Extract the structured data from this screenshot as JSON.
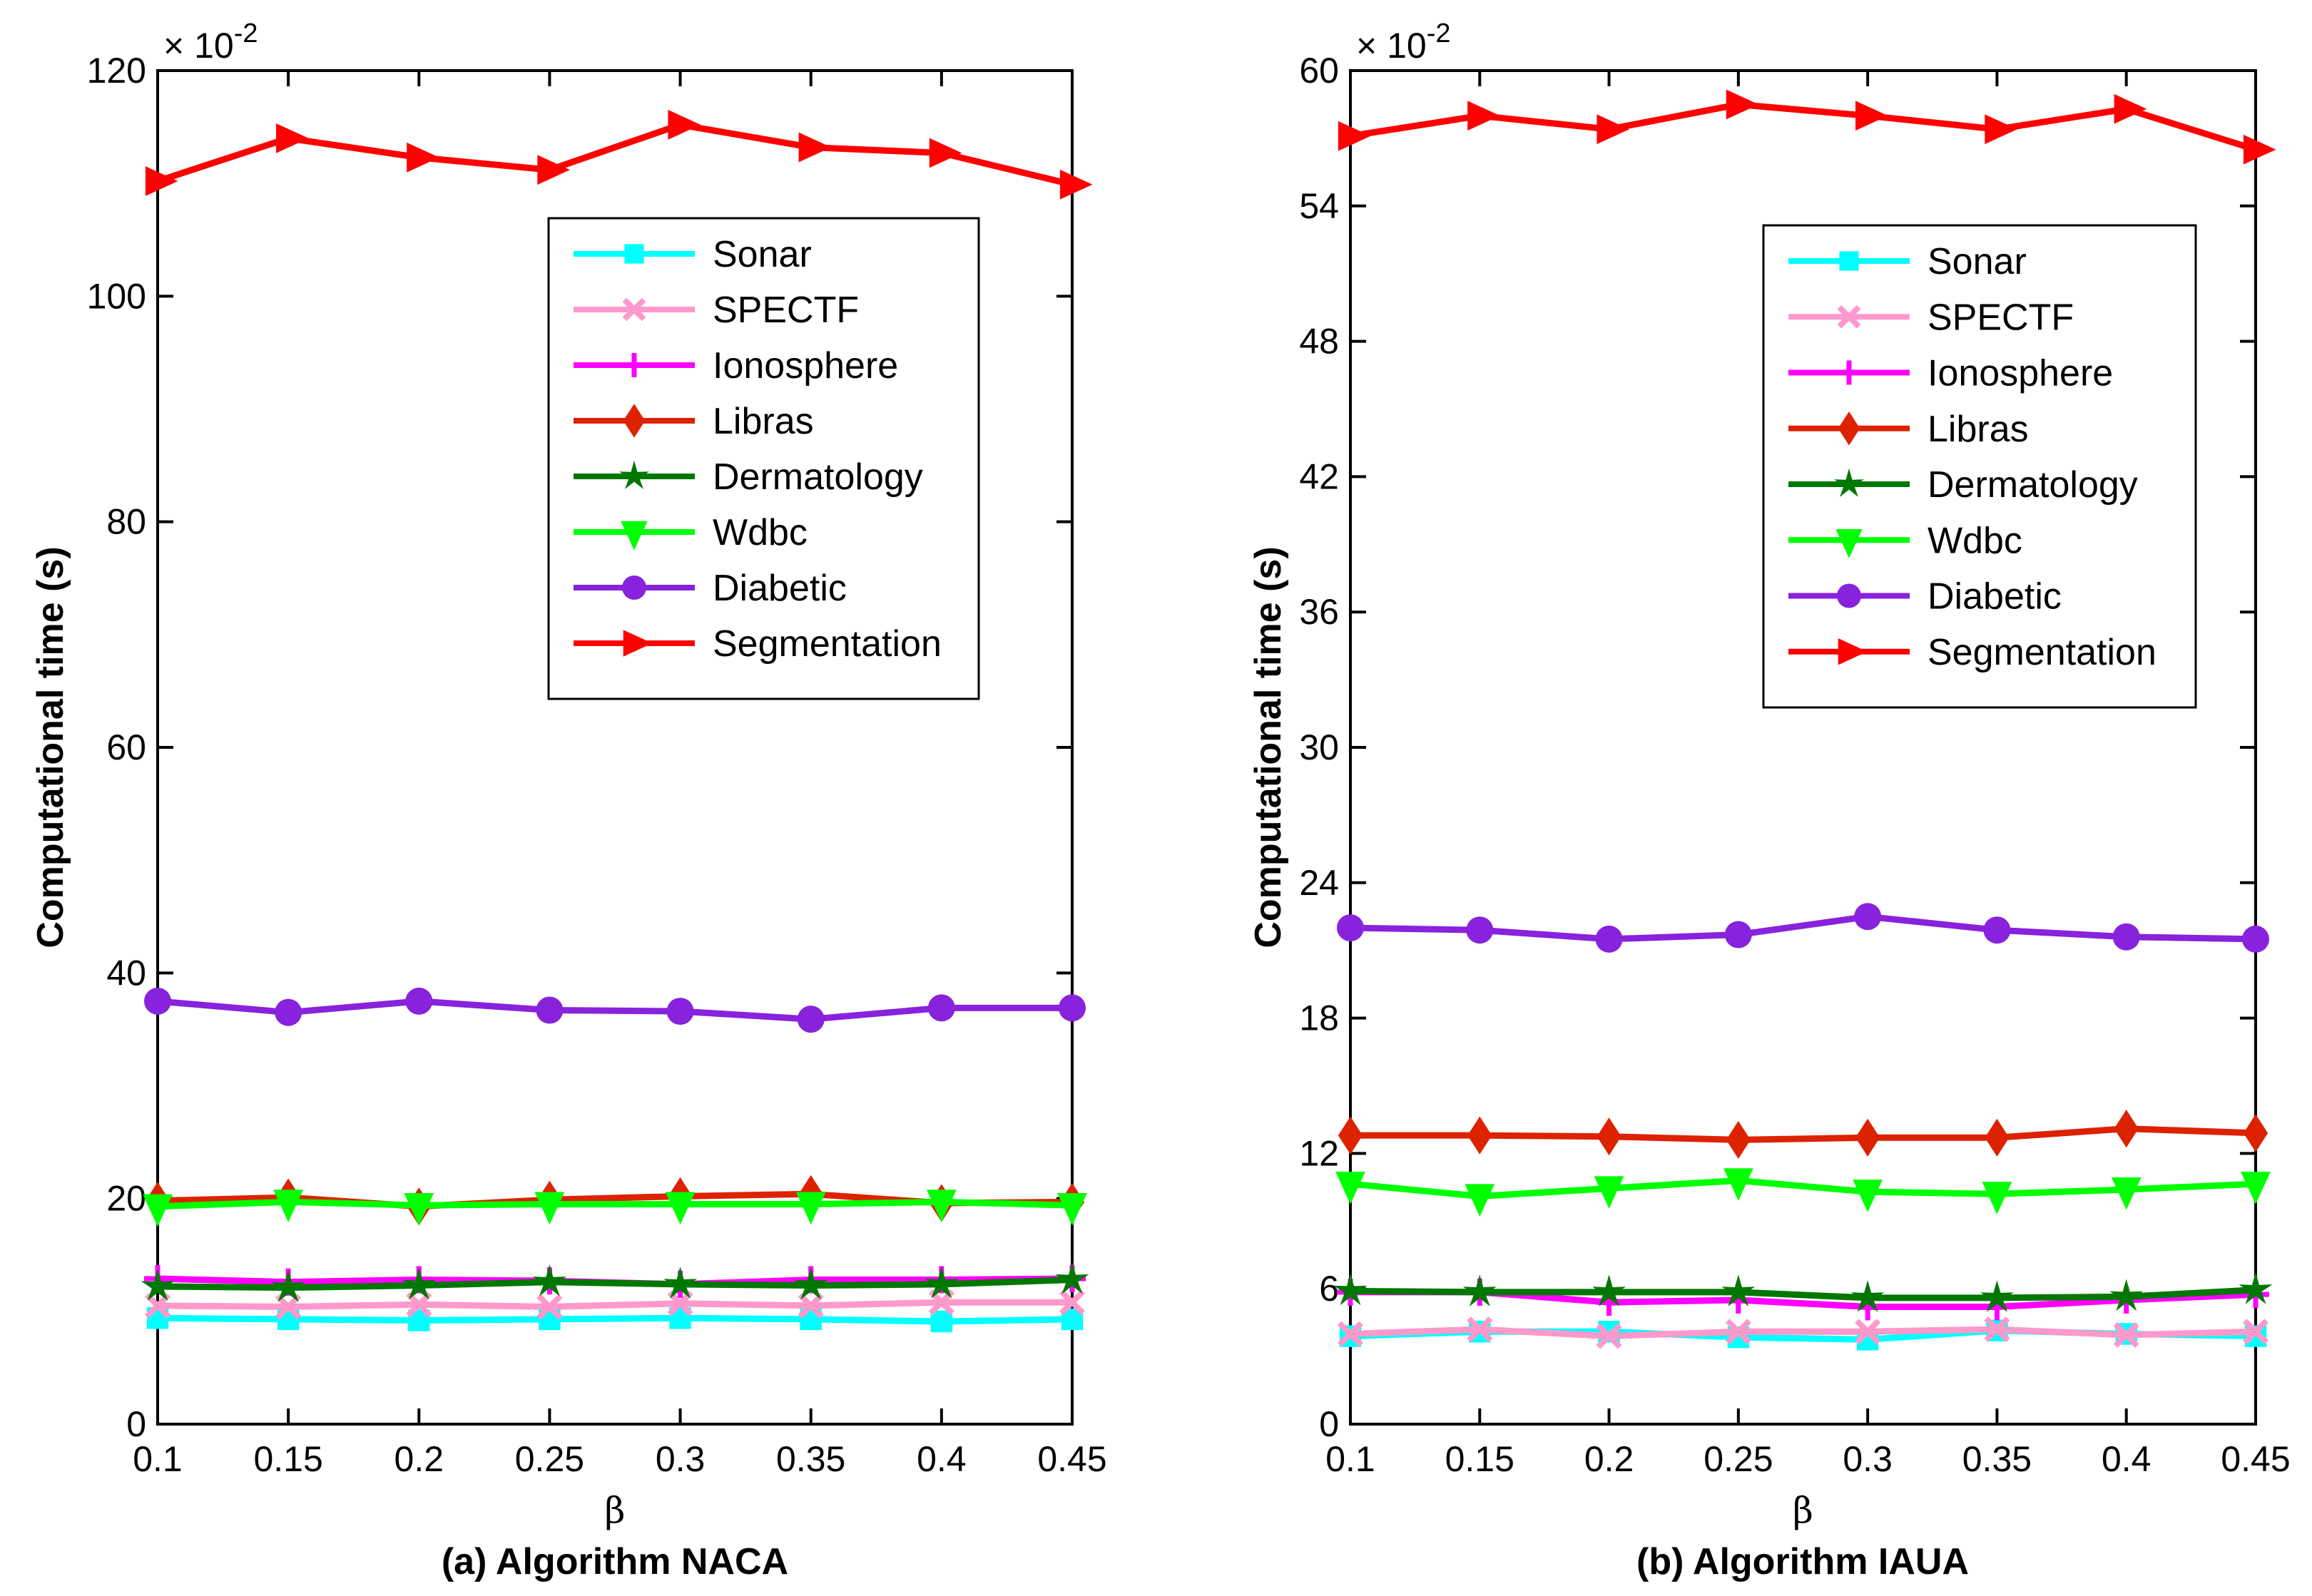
{
  "chart_data": [
    {
      "type": "line",
      "title": "(a) Algorithm NACA",
      "xlabel": "β",
      "ylabel": "Computational time (s)",
      "y_multiplier": "× 10^-2",
      "y_multiplier_base": "× 10",
      "y_multiplier_exp": "-2",
      "x": [
        0.1,
        0.15,
        0.2,
        0.25,
        0.3,
        0.35,
        0.4,
        0.45
      ],
      "xtick_labels": [
        "0.1",
        "0.15",
        "0.2",
        "0.25",
        "0.3",
        "0.35",
        "0.4",
        "0.45"
      ],
      "xlim": [
        0.1,
        0.45
      ],
      "ylim": [
        0,
        120
      ],
      "yticks": [
        0,
        20,
        40,
        60,
        80,
        100,
        120
      ],
      "legend_position": "upper-right",
      "grid": false,
      "series": [
        {
          "name": "Sonar",
          "color": "#00ffff",
          "marker": "square",
          "values": [
            9.4,
            9.3,
            9.2,
            9.3,
            9.4,
            9.3,
            9.1,
            9.3
          ]
        },
        {
          "name": "SPECTF",
          "color": "#ff99cc",
          "marker": "x",
          "values": [
            10.5,
            10.4,
            10.6,
            10.4,
            10.7,
            10.5,
            10.8,
            10.8
          ]
        },
        {
          "name": "Ionosphere",
          "color": "#ff00ff",
          "marker": "plus",
          "values": [
            12.9,
            12.6,
            12.8,
            12.7,
            12.4,
            12.8,
            12.8,
            12.9
          ]
        },
        {
          "name": "Libras",
          "color": "#dd2200",
          "marker": "diamond",
          "values": [
            19.8,
            20.1,
            19.3,
            19.9,
            20.2,
            20.4,
            19.6,
            19.7
          ]
        },
        {
          "name": "Dermatology",
          "color": "#007700",
          "marker": "star",
          "values": [
            12.2,
            12.1,
            12.3,
            12.6,
            12.4,
            12.3,
            12.4,
            12.8
          ]
        },
        {
          "name": "Wdbc",
          "color": "#00ff00",
          "marker": "triangle-down",
          "values": [
            19.3,
            19.7,
            19.4,
            19.5,
            19.5,
            19.5,
            19.7,
            19.4
          ]
        },
        {
          "name": "Diabetic",
          "color": "#8822dd",
          "marker": "circle",
          "values": [
            37.5,
            36.5,
            37.5,
            36.7,
            36.6,
            35.9,
            36.9,
            36.9
          ]
        },
        {
          "name": "Segmentation",
          "color": "#ff0000",
          "marker": "triangle-right",
          "values": [
            110.2,
            114.0,
            112.3,
            111.2,
            115.2,
            113.2,
            112.7,
            109.9
          ]
        }
      ]
    },
    {
      "type": "line",
      "title": "(b) Algorithm IAUA",
      "xlabel": "β",
      "ylabel": "Computational time (s)",
      "y_multiplier": "× 10^-2",
      "y_multiplier_base": "× 10",
      "y_multiplier_exp": "-2",
      "x": [
        0.1,
        0.15,
        0.2,
        0.25,
        0.3,
        0.35,
        0.4,
        0.45
      ],
      "xtick_labels": [
        "0.1",
        "0.15",
        "0.2",
        "0.25",
        "0.3",
        "0.35",
        "0.4",
        "0.45"
      ],
      "xlim": [
        0.1,
        0.45
      ],
      "ylim": [
        0,
        60
      ],
      "yticks": [
        0,
        6,
        12,
        18,
        24,
        30,
        36,
        42,
        48,
        54,
        60
      ],
      "legend_position": "upper-right",
      "grid": false,
      "series": [
        {
          "name": "Sonar",
          "color": "#00ffff",
          "marker": "square",
          "values": [
            3.9,
            4.1,
            4.1,
            3.85,
            3.75,
            4.15,
            4.0,
            3.9
          ]
        },
        {
          "name": "SPECTF",
          "color": "#ff99cc",
          "marker": "x",
          "values": [
            4.0,
            4.2,
            3.9,
            4.1,
            4.1,
            4.2,
            3.95,
            4.1
          ]
        },
        {
          "name": "Ionosphere",
          "color": "#ff00ff",
          "marker": "plus",
          "values": [
            5.85,
            5.85,
            5.4,
            5.5,
            5.2,
            5.2,
            5.5,
            5.75
          ]
        },
        {
          "name": "Libras",
          "color": "#dd2200",
          "marker": "diamond",
          "values": [
            12.8,
            12.8,
            12.75,
            12.6,
            12.7,
            12.7,
            13.1,
            12.9
          ]
        },
        {
          "name": "Dermatology",
          "color": "#007700",
          "marker": "star",
          "values": [
            5.9,
            5.85,
            5.85,
            5.85,
            5.6,
            5.6,
            5.65,
            5.95
          ]
        },
        {
          "name": "Wdbc",
          "color": "#00ff00",
          "marker": "triangle-down",
          "values": [
            10.65,
            10.1,
            10.45,
            10.8,
            10.3,
            10.2,
            10.4,
            10.65
          ]
        },
        {
          "name": "Diabetic",
          "color": "#8822dd",
          "marker": "circle",
          "values": [
            22.0,
            21.9,
            21.5,
            21.7,
            22.5,
            21.9,
            21.6,
            21.5
          ]
        },
        {
          "name": "Segmentation",
          "color": "#ff0000",
          "marker": "triangle-right",
          "values": [
            57.1,
            58.0,
            57.4,
            58.5,
            58.0,
            57.4,
            58.3,
            56.5
          ]
        }
      ]
    }
  ]
}
